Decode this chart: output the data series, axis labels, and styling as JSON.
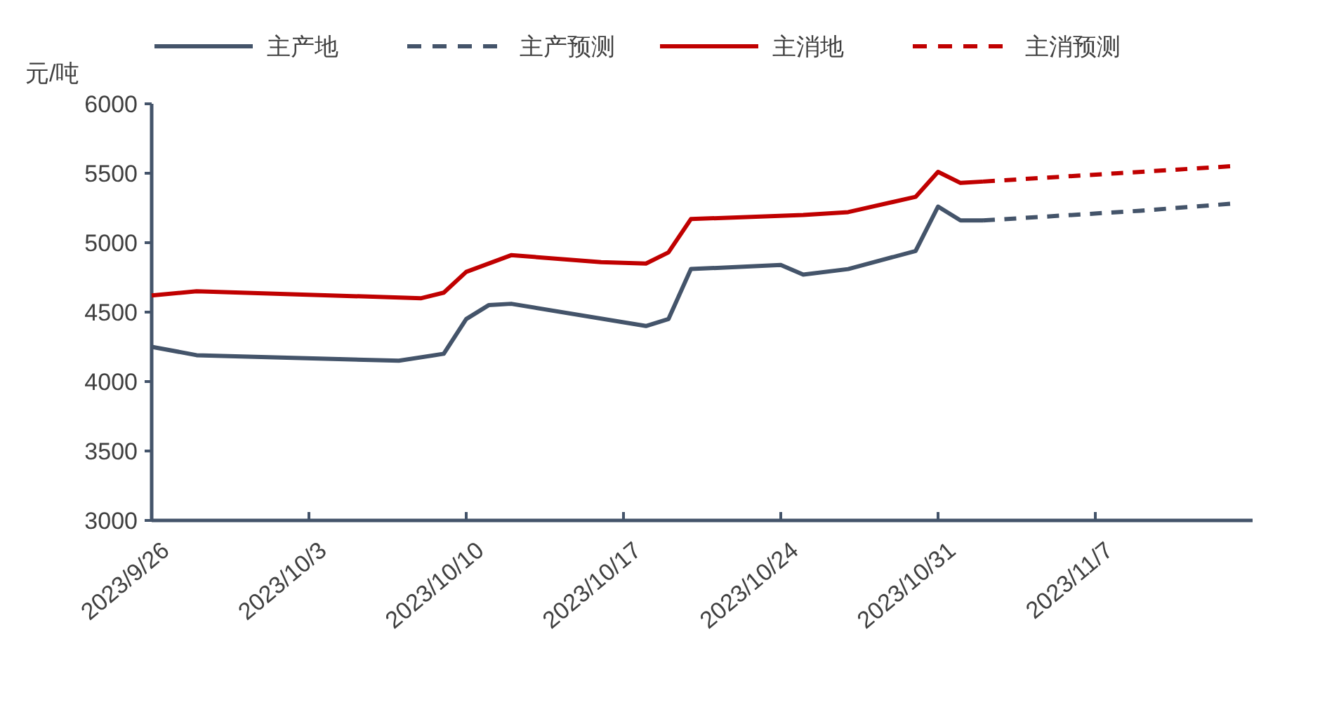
{
  "chart_data": {
    "type": "line",
    "ylabel": "元/吨",
    "legend": "top",
    "grid": false,
    "xlim": [
      "2023-09-26",
      "2023-11-14"
    ],
    "ylim": [
      3000,
      6000
    ],
    "yticks": [
      3000,
      3500,
      4000,
      4500,
      5000,
      5500,
      6000
    ],
    "xticks": [
      {
        "value": "2023-09-26",
        "label": "2023/9/26"
      },
      {
        "value": "2023-10-03",
        "label": "2023/10/3"
      },
      {
        "value": "2023-10-10",
        "label": "2023/10/10"
      },
      {
        "value": "2023-10-17",
        "label": "2023/10/17"
      },
      {
        "value": "2023-10-24",
        "label": "2023/10/24"
      },
      {
        "value": "2023-10-31",
        "label": "2023/10/31"
      },
      {
        "value": "2023-11-07",
        "label": "2023/11/7"
      }
    ],
    "series": [
      {
        "name": "主产地",
        "color": "#44546a",
        "line_style": "solid",
        "x": [
          "2023-09-26",
          "2023-09-28",
          "2023-10-07",
          "2023-10-09",
          "2023-10-10",
          "2023-10-11",
          "2023-10-12",
          "2023-10-18",
          "2023-10-19",
          "2023-10-20",
          "2023-10-24",
          "2023-10-25",
          "2023-10-27",
          "2023-10-30",
          "2023-10-31",
          "2023-11-01",
          "2023-11-02"
        ],
        "values": [
          4250,
          4190,
          4150,
          4200,
          4450,
          4550,
          4560,
          4400,
          4450,
          4810,
          4840,
          4770,
          4810,
          4940,
          5260,
          5160,
          5160
        ]
      },
      {
        "name": "主产预测",
        "color": "#44546a",
        "line_style": "dashed",
        "x": [
          "2023-11-02",
          "2023-11-09",
          "2023-11-13"
        ],
        "values": [
          5160,
          5230,
          5280
        ]
      },
      {
        "name": "主消地",
        "color": "#c00000",
        "line_style": "solid",
        "x": [
          "2023-09-26",
          "2023-09-28",
          "2023-10-08",
          "2023-10-09",
          "2023-10-10",
          "2023-10-12",
          "2023-10-16",
          "2023-10-18",
          "2023-10-19",
          "2023-10-20",
          "2023-10-25",
          "2023-10-27",
          "2023-10-30",
          "2023-10-31",
          "2023-11-01",
          "2023-11-02"
        ],
        "values": [
          4620,
          4650,
          4600,
          4640,
          4790,
          4910,
          4860,
          4850,
          4930,
          5170,
          5200,
          5220,
          5330,
          5510,
          5430,
          5440
        ]
      },
      {
        "name": "主消预测",
        "color": "#c00000",
        "line_style": "dashed",
        "x": [
          "2023-11-02",
          "2023-11-08",
          "2023-11-13"
        ],
        "values": [
          5440,
          5500,
          5550
        ]
      }
    ]
  }
}
